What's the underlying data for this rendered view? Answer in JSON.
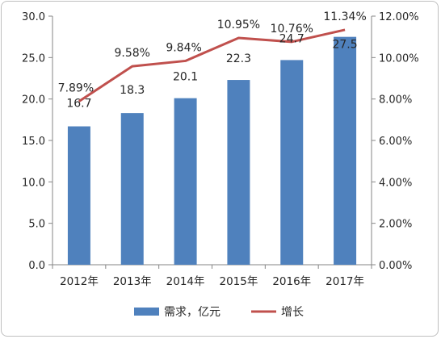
{
  "chart_data": {
    "type": "bar+line",
    "categories": [
      "2012年",
      "2013年",
      "2014年",
      "2015年",
      "2016年",
      "2017年"
    ],
    "series": [
      {
        "name": "需求，亿元",
        "type": "bar",
        "axis": "left",
        "values": [
          16.7,
          18.3,
          20.1,
          22.3,
          24.7,
          27.5
        ],
        "labels": [
          "16.7",
          "18.3",
          "20.1",
          "22.3",
          "24.7",
          "27.5"
        ],
        "color": "#4f81bd"
      },
      {
        "name": "增长",
        "type": "line",
        "axis": "right",
        "values": [
          7.89,
          9.58,
          9.84,
          10.95,
          10.76,
          11.34
        ],
        "labels": [
          "7.89%",
          "9.58%",
          "9.84%",
          "10.95%",
          "10.76%",
          "11.34%"
        ],
        "color": "#c0504d"
      }
    ],
    "y_left": {
      "range": [
        0,
        30
      ],
      "ticks": [
        "0.0",
        "5.0",
        "10.0",
        "15.0",
        "20.0",
        "25.0",
        "30.0"
      ]
    },
    "y_right": {
      "range": [
        0,
        12
      ],
      "ticks": [
        "0.00%",
        "2.00%",
        "4.00%",
        "6.00%",
        "8.00%",
        "10.00%",
        "12.00%"
      ]
    },
    "grid": false,
    "legend": "bottom-center"
  }
}
